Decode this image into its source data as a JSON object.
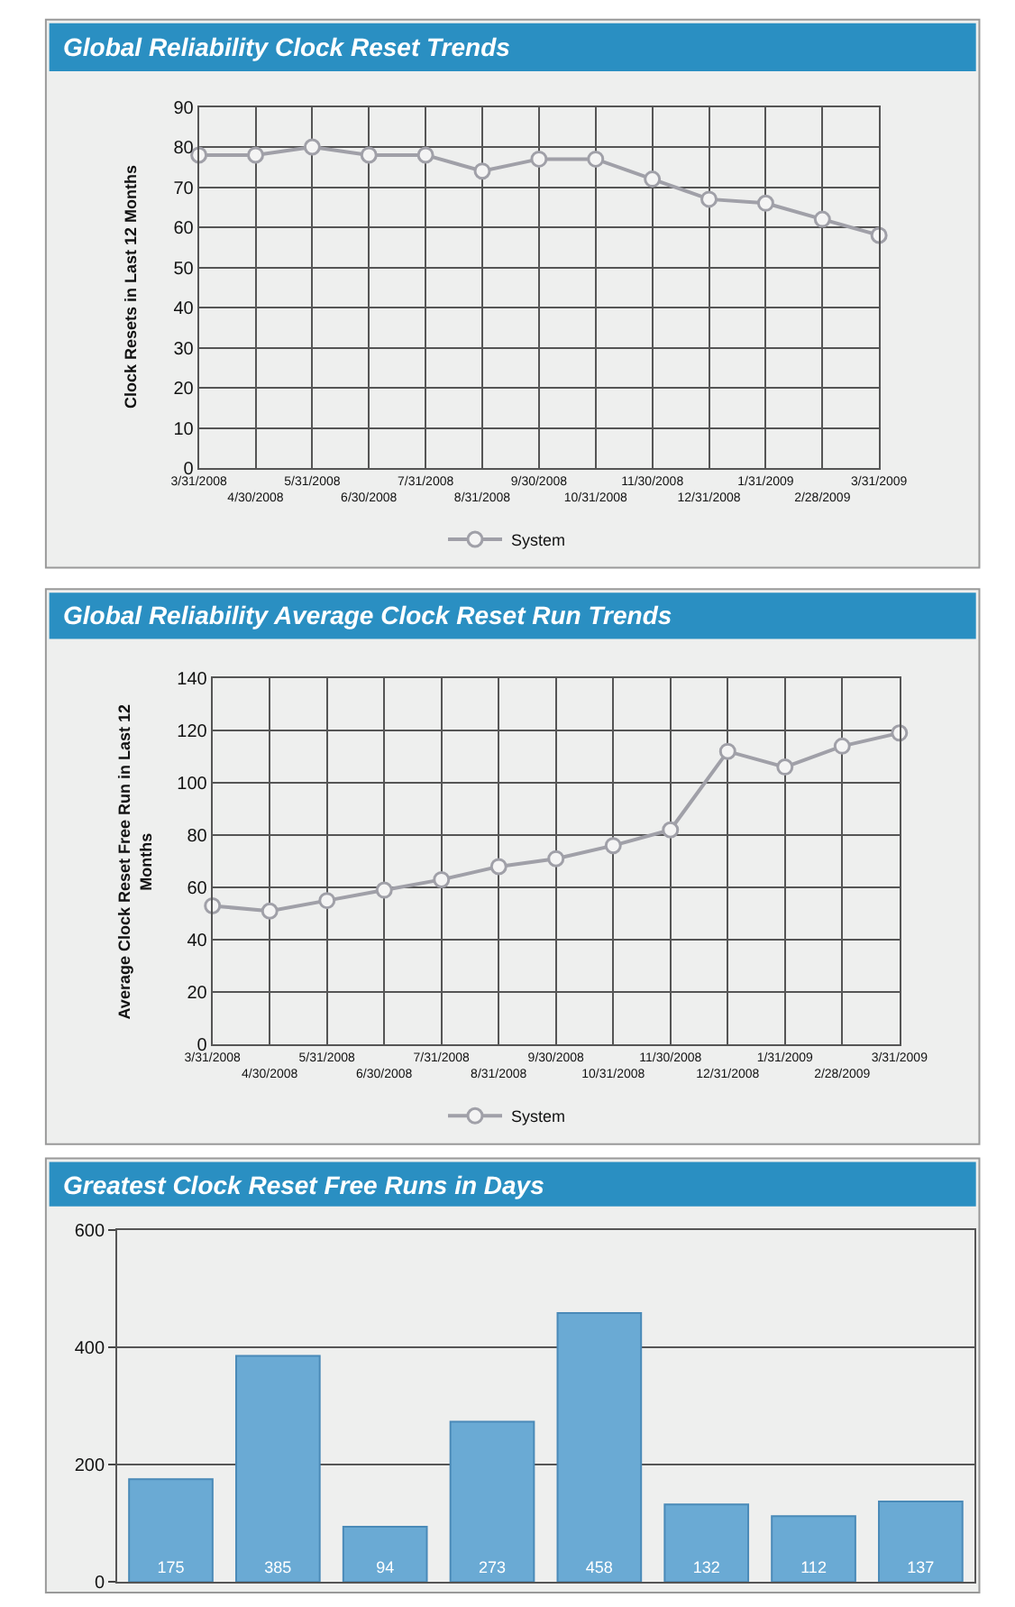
{
  "chart_data": [
    {
      "type": "line",
      "title": "Global Reliability Clock Reset Trends",
      "ylabel": "Clock Resets in Last 12 Months",
      "categories": [
        "3/31/2008",
        "4/30/2008",
        "5/31/2008",
        "6/30/2008",
        "7/31/2008",
        "8/31/2008",
        "9/30/2008",
        "10/31/2008",
        "11/30/2008",
        "12/31/2008",
        "1/31/2009",
        "2/28/2009",
        "3/31/2009"
      ],
      "series": [
        {
          "name": "System",
          "color": "#a0a0a8",
          "values": [
            78,
            78,
            80,
            78,
            78,
            74,
            77,
            77,
            72,
            67,
            66,
            62,
            58
          ]
        }
      ],
      "ylim": [
        0,
        90
      ],
      "yticks": [
        0,
        10,
        20,
        30,
        40,
        50,
        60,
        70,
        80,
        90
      ],
      "grid": true,
      "legend": "bottom",
      "marker": "circle",
      "line_style": "solid"
    },
    {
      "type": "line",
      "title": "Global Reliability Average Clock Reset Run Trends",
      "ylabel": "Average Clock Reset Free Run in Last 12 Months",
      "categories": [
        "3/31/2008",
        "4/30/2008",
        "5/31/2008",
        "6/30/2008",
        "7/31/2008",
        "8/31/2008",
        "9/30/2008",
        "10/31/2008",
        "11/30/2008",
        "12/31/2008",
        "1/31/2009",
        "2/28/2009",
        "3/31/2009"
      ],
      "series": [
        {
          "name": "System",
          "color": "#a0a0a8",
          "values": [
            53,
            51,
            55,
            59,
            63,
            68,
            71,
            76,
            82,
            112,
            106,
            114,
            119
          ]
        }
      ],
      "ylim": [
        0,
        140
      ],
      "yticks": [
        0,
        20,
        40,
        60,
        80,
        100,
        120,
        140
      ],
      "grid": true,
      "legend": "bottom",
      "marker": "circle",
      "line_style": "solid"
    },
    {
      "type": "bar",
      "title": "Greatest Clock Reset Free Runs in Days",
      "categories": [
        null,
        null,
        null,
        null,
        null,
        null,
        null,
        null
      ],
      "series": [
        {
          "color": "#6aaad4",
          "values": [
            175,
            385,
            94,
            273,
            458,
            132,
            112,
            137
          ]
        }
      ],
      "ylim": [
        0,
        600
      ],
      "yticks": [
        0,
        200,
        400,
        600
      ],
      "grid": "y",
      "data_labels": true
    }
  ]
}
